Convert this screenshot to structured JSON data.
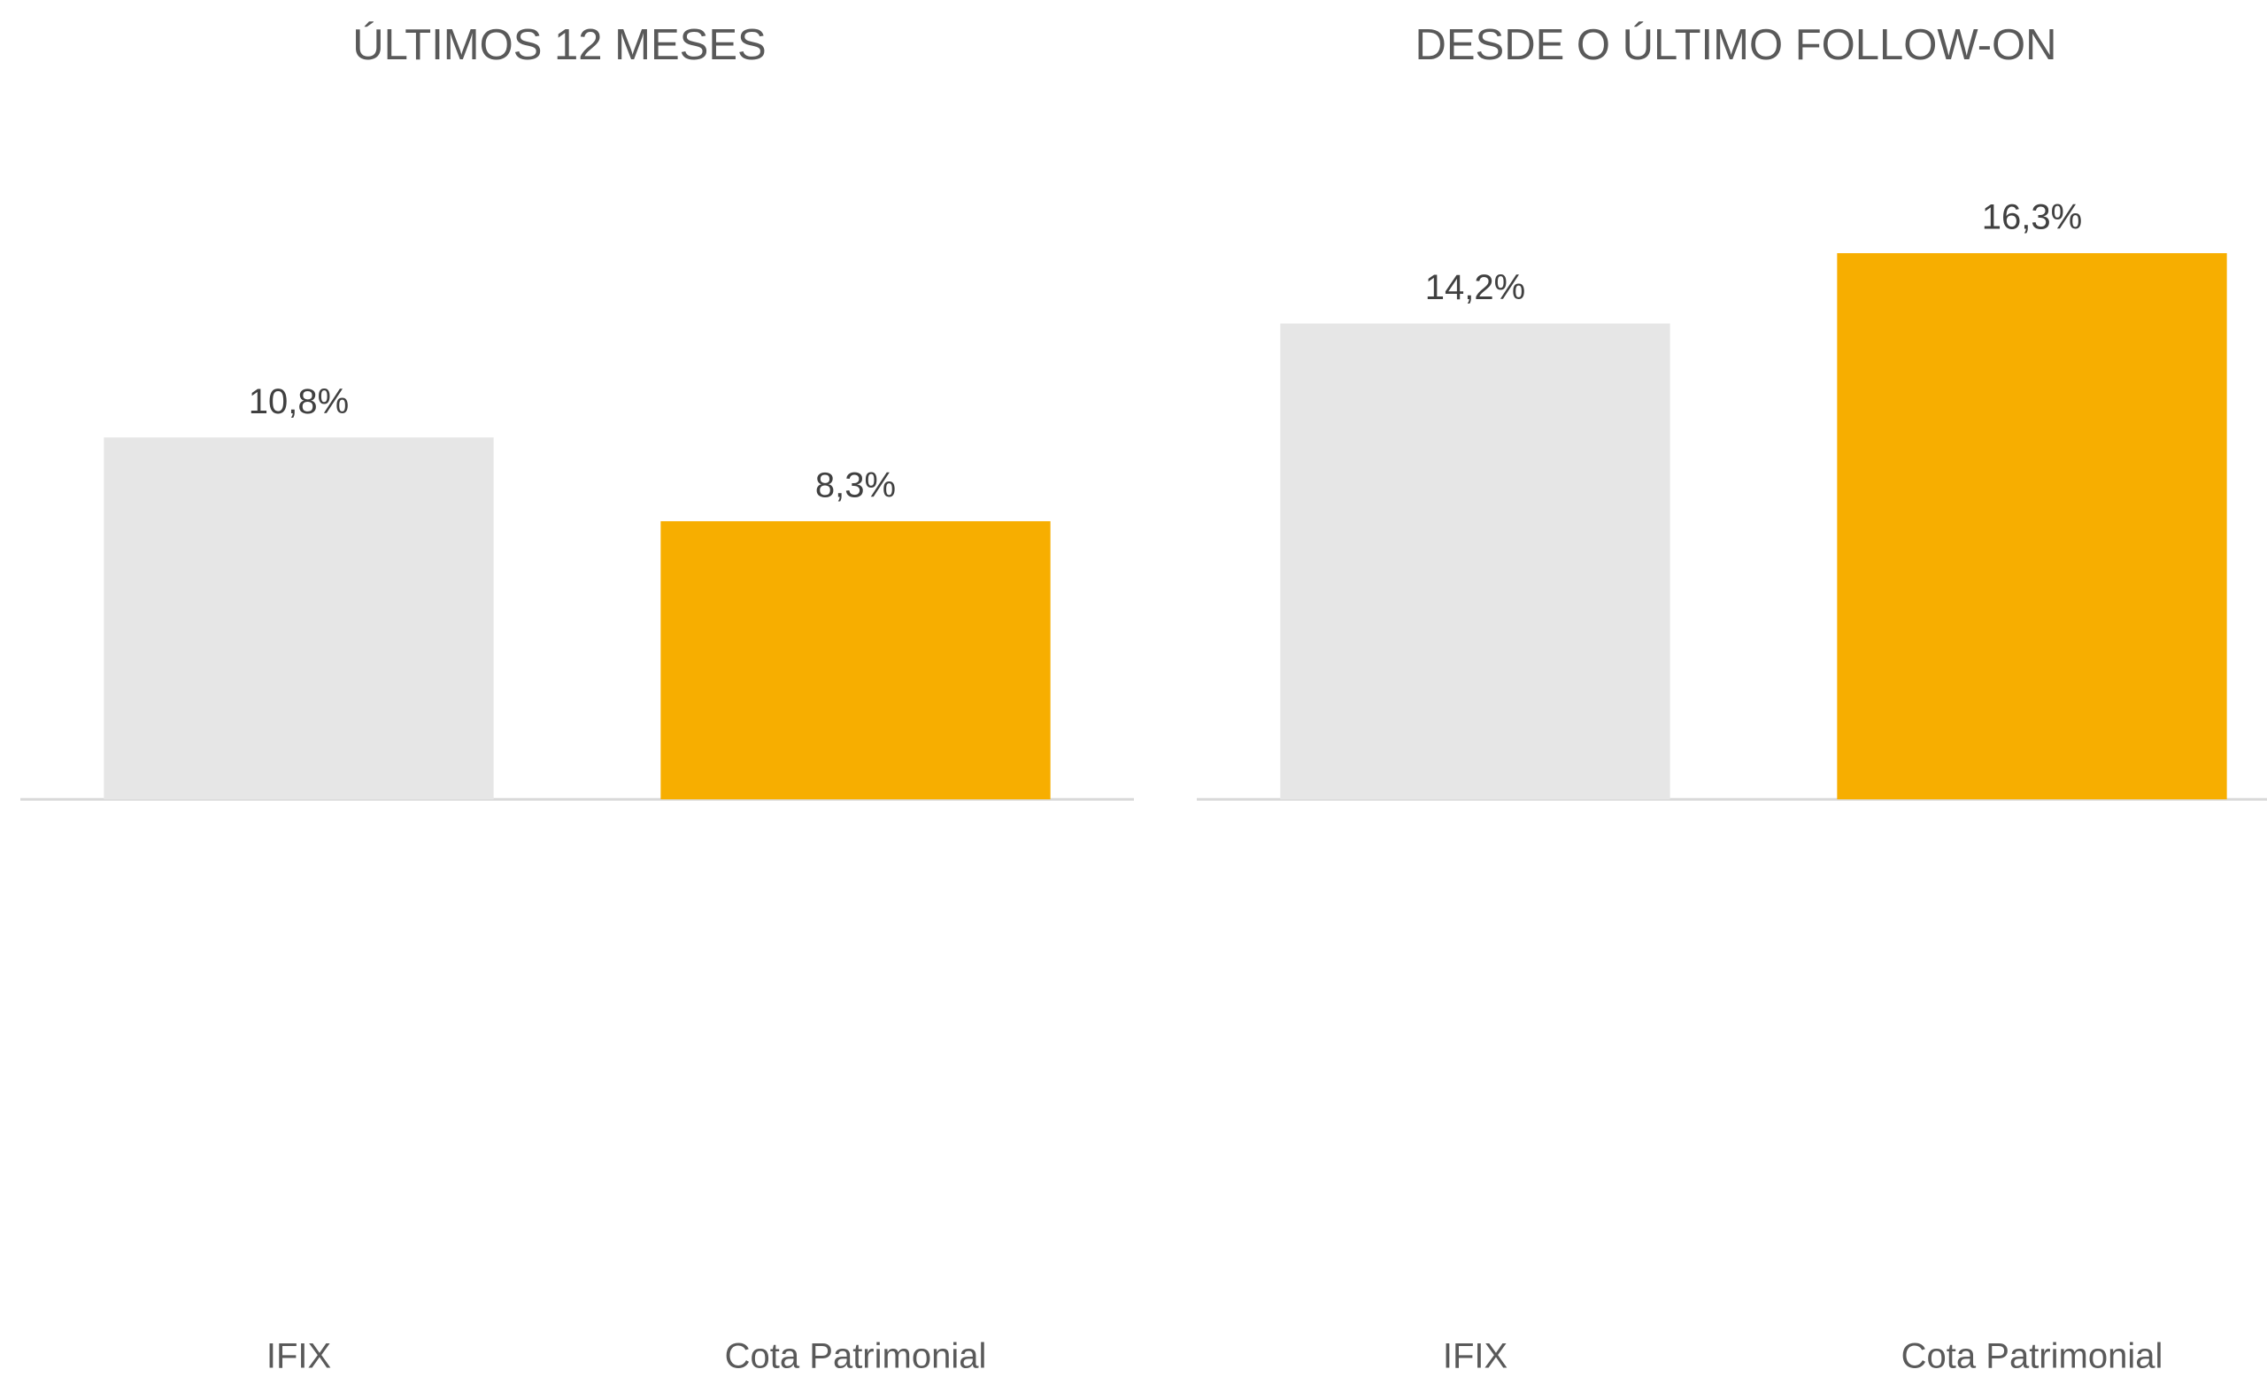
{
  "chart_data": [
    {
      "type": "bar",
      "title": "ÚLTIMOS 12 MESES",
      "categories": [
        "IFIX",
        "Cota Patrimonial"
      ],
      "values": [
        10.8,
        8.3
      ],
      "value_labels": [
        "10,8%",
        "8,3%"
      ],
      "colors": [
        "#e6e6e6",
        "#f7ae00"
      ],
      "ylim": [
        -16,
        20
      ]
    },
    {
      "type": "bar",
      "title": "DESDE O ÚLTIMO FOLLOW-ON",
      "categories": [
        "IFIX",
        "Cota Patrimonial"
      ],
      "values": [
        14.2,
        16.3
      ],
      "value_labels": [
        "14,2%",
        "16,3%"
      ],
      "colors": [
        "#e6e6e6",
        "#f7ae00"
      ],
      "ylim": [
        -16,
        20
      ]
    }
  ]
}
